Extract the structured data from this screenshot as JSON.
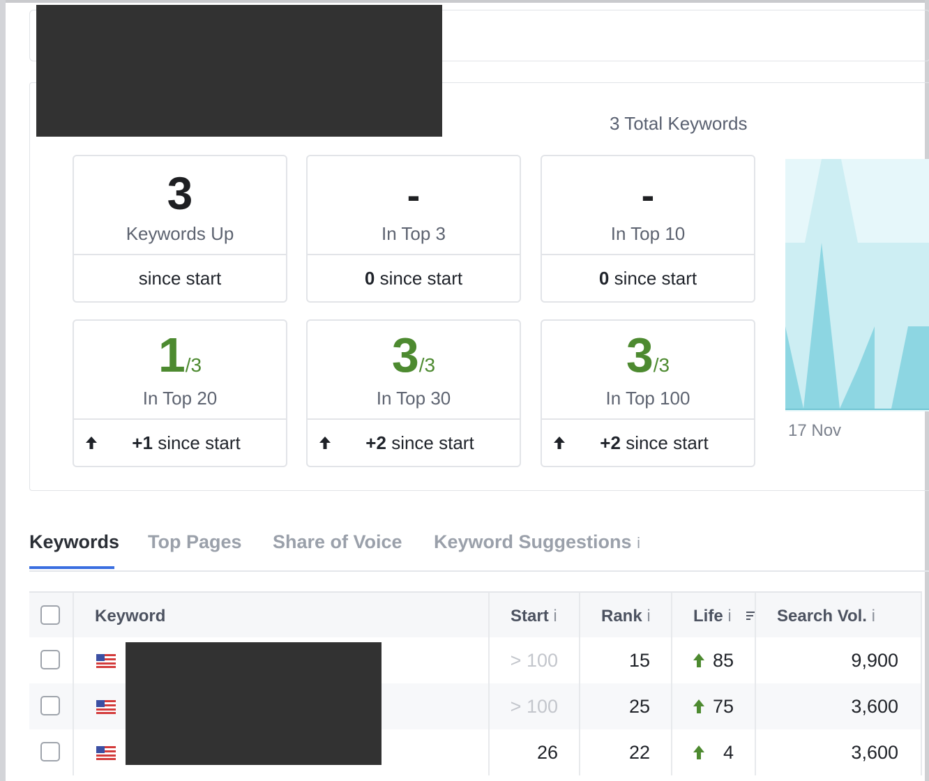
{
  "summary": {
    "total_keywords": "3 Total Keywords",
    "cards": [
      {
        "value": "3",
        "label": "Keywords Up",
        "bottom_bold": "",
        "bottom_text": "since start"
      },
      {
        "value": "-",
        "label": "In Top 3",
        "bottom_bold": "0",
        "bottom_text": "since start"
      },
      {
        "value": "-",
        "label": "In Top 10",
        "bottom_bold": "0",
        "bottom_text": "since start"
      },
      {
        "value": "1",
        "value_total": "/3",
        "label": "In Top 20",
        "bottom_bold": "+1",
        "bottom_text": "since start"
      },
      {
        "value": "3",
        "value_total": "/3",
        "label": "In Top 30",
        "bottom_bold": "+2",
        "bottom_text": "since start"
      },
      {
        "value": "3",
        "value_total": "/3",
        "label": "In Top 100",
        "bottom_bold": "+2",
        "bottom_text": "since start"
      }
    ],
    "chart_date": "17 Nov",
    "chart_colors": {
      "back": "#cdeef3",
      "front": "#8dd6e2",
      "accent": "#4d8a30"
    }
  },
  "tabs": [
    {
      "label": "Keywords"
    },
    {
      "label": "Top Pages"
    },
    {
      "label": "Share of Voice"
    },
    {
      "label": "Keyword Suggestions"
    }
  ],
  "tab_info_symbol": "i",
  "table": {
    "headers": {
      "keyword": "Keyword",
      "start": "Start",
      "rank": "Rank",
      "life": "Life",
      "search_vol": "Search Vol.",
      "info": "i"
    },
    "rows": [
      {
        "start": "> 100",
        "rank": "15",
        "life": "85",
        "search_vol": "9,900"
      },
      {
        "start": "> 100",
        "rank": "25",
        "life": "75",
        "search_vol": "3,600"
      },
      {
        "start": "26",
        "rank": "22",
        "life": "4",
        "search_vol": "3,600"
      }
    ]
  }
}
